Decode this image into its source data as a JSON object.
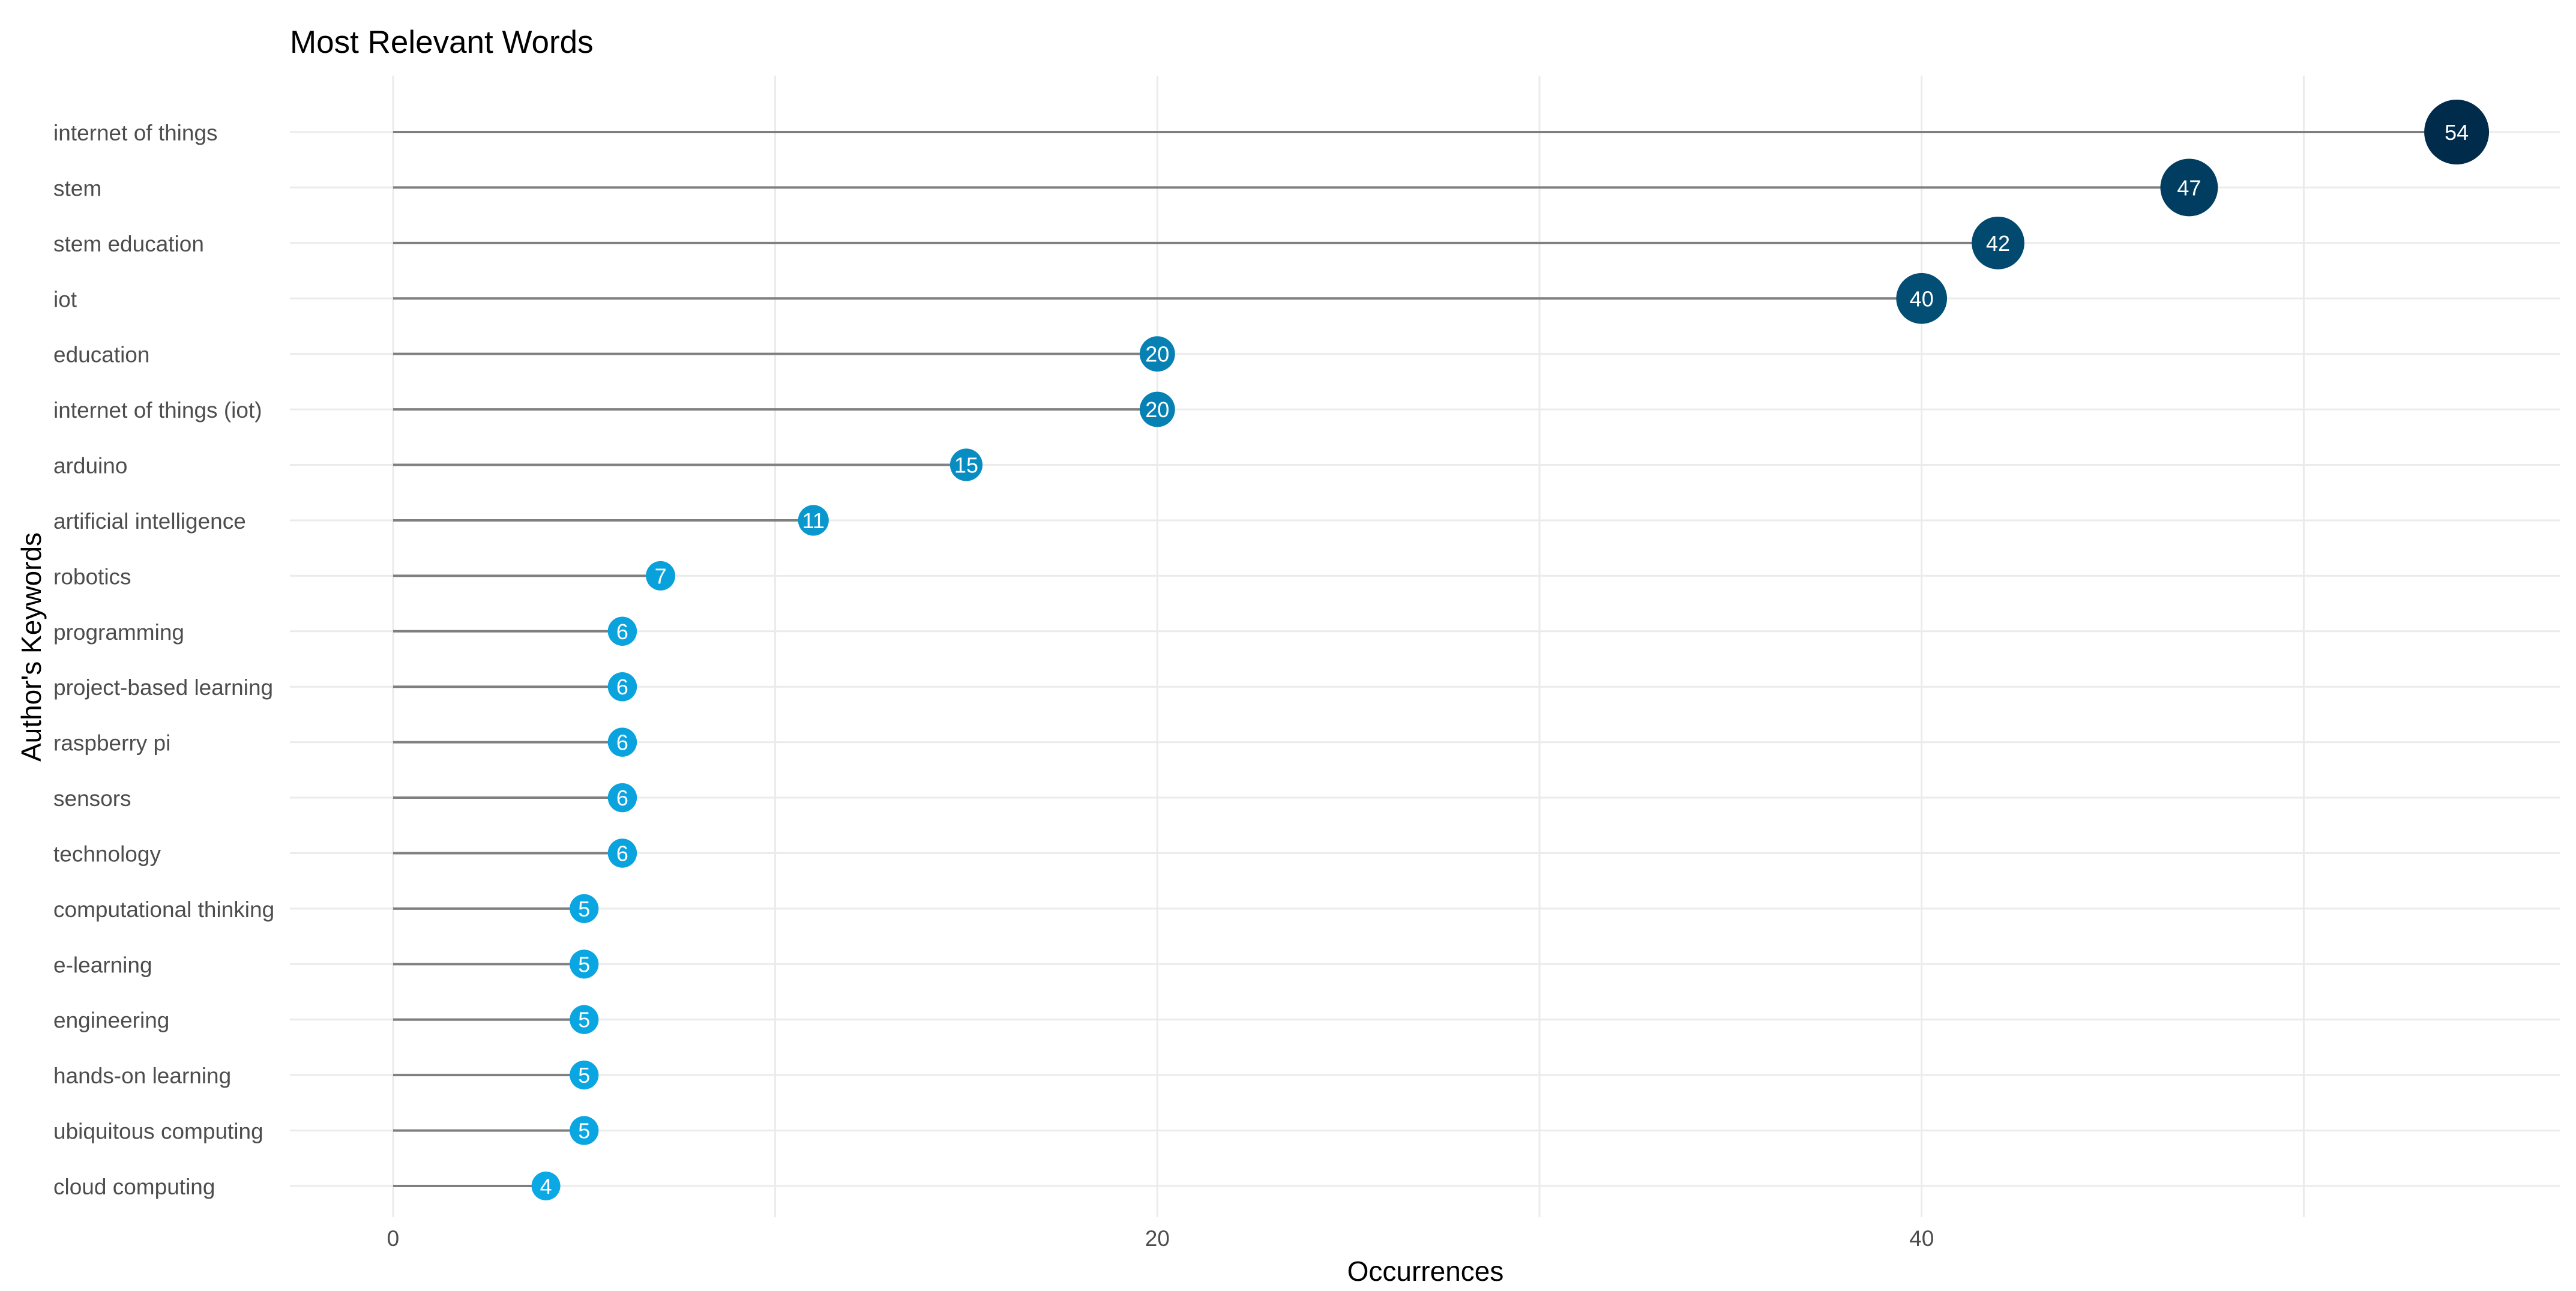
{
  "chart_data": {
    "type": "lollipop",
    "title": "Most Relevant Words",
    "xlabel": "Occurrences",
    "ylabel": "Author's Keywords",
    "xlim": [
      -2.7,
      56.7
    ],
    "x_ticks": [
      0,
      20,
      40
    ],
    "x_minor_gridlines": [
      10,
      30,
      50
    ],
    "grid": true,
    "legend": "none",
    "categories": [
      "internet of things",
      "stem",
      "stem education",
      "iot",
      "education",
      "internet of things (iot)",
      "arduino",
      "artificial intelligence",
      "robotics",
      "programming",
      "project-based learning",
      "raspberry pi",
      "sensors",
      "technology",
      "computational thinking",
      "e-learning",
      "engineering",
      "hands-on learning",
      "ubiquitous computing",
      "cloud computing"
    ],
    "values": [
      54,
      47,
      42,
      40,
      20,
      20,
      15,
      11,
      7,
      6,
      6,
      6,
      6,
      6,
      5,
      5,
      5,
      5,
      5,
      4
    ],
    "colors": {
      "low": "#0aa8e4",
      "high": "#002b4a",
      "stem": "#7f7f7f",
      "grid": "#ebebeb",
      "text": "#4d4d4d",
      "title": "#000000",
      "label": "#ffffff"
    }
  }
}
